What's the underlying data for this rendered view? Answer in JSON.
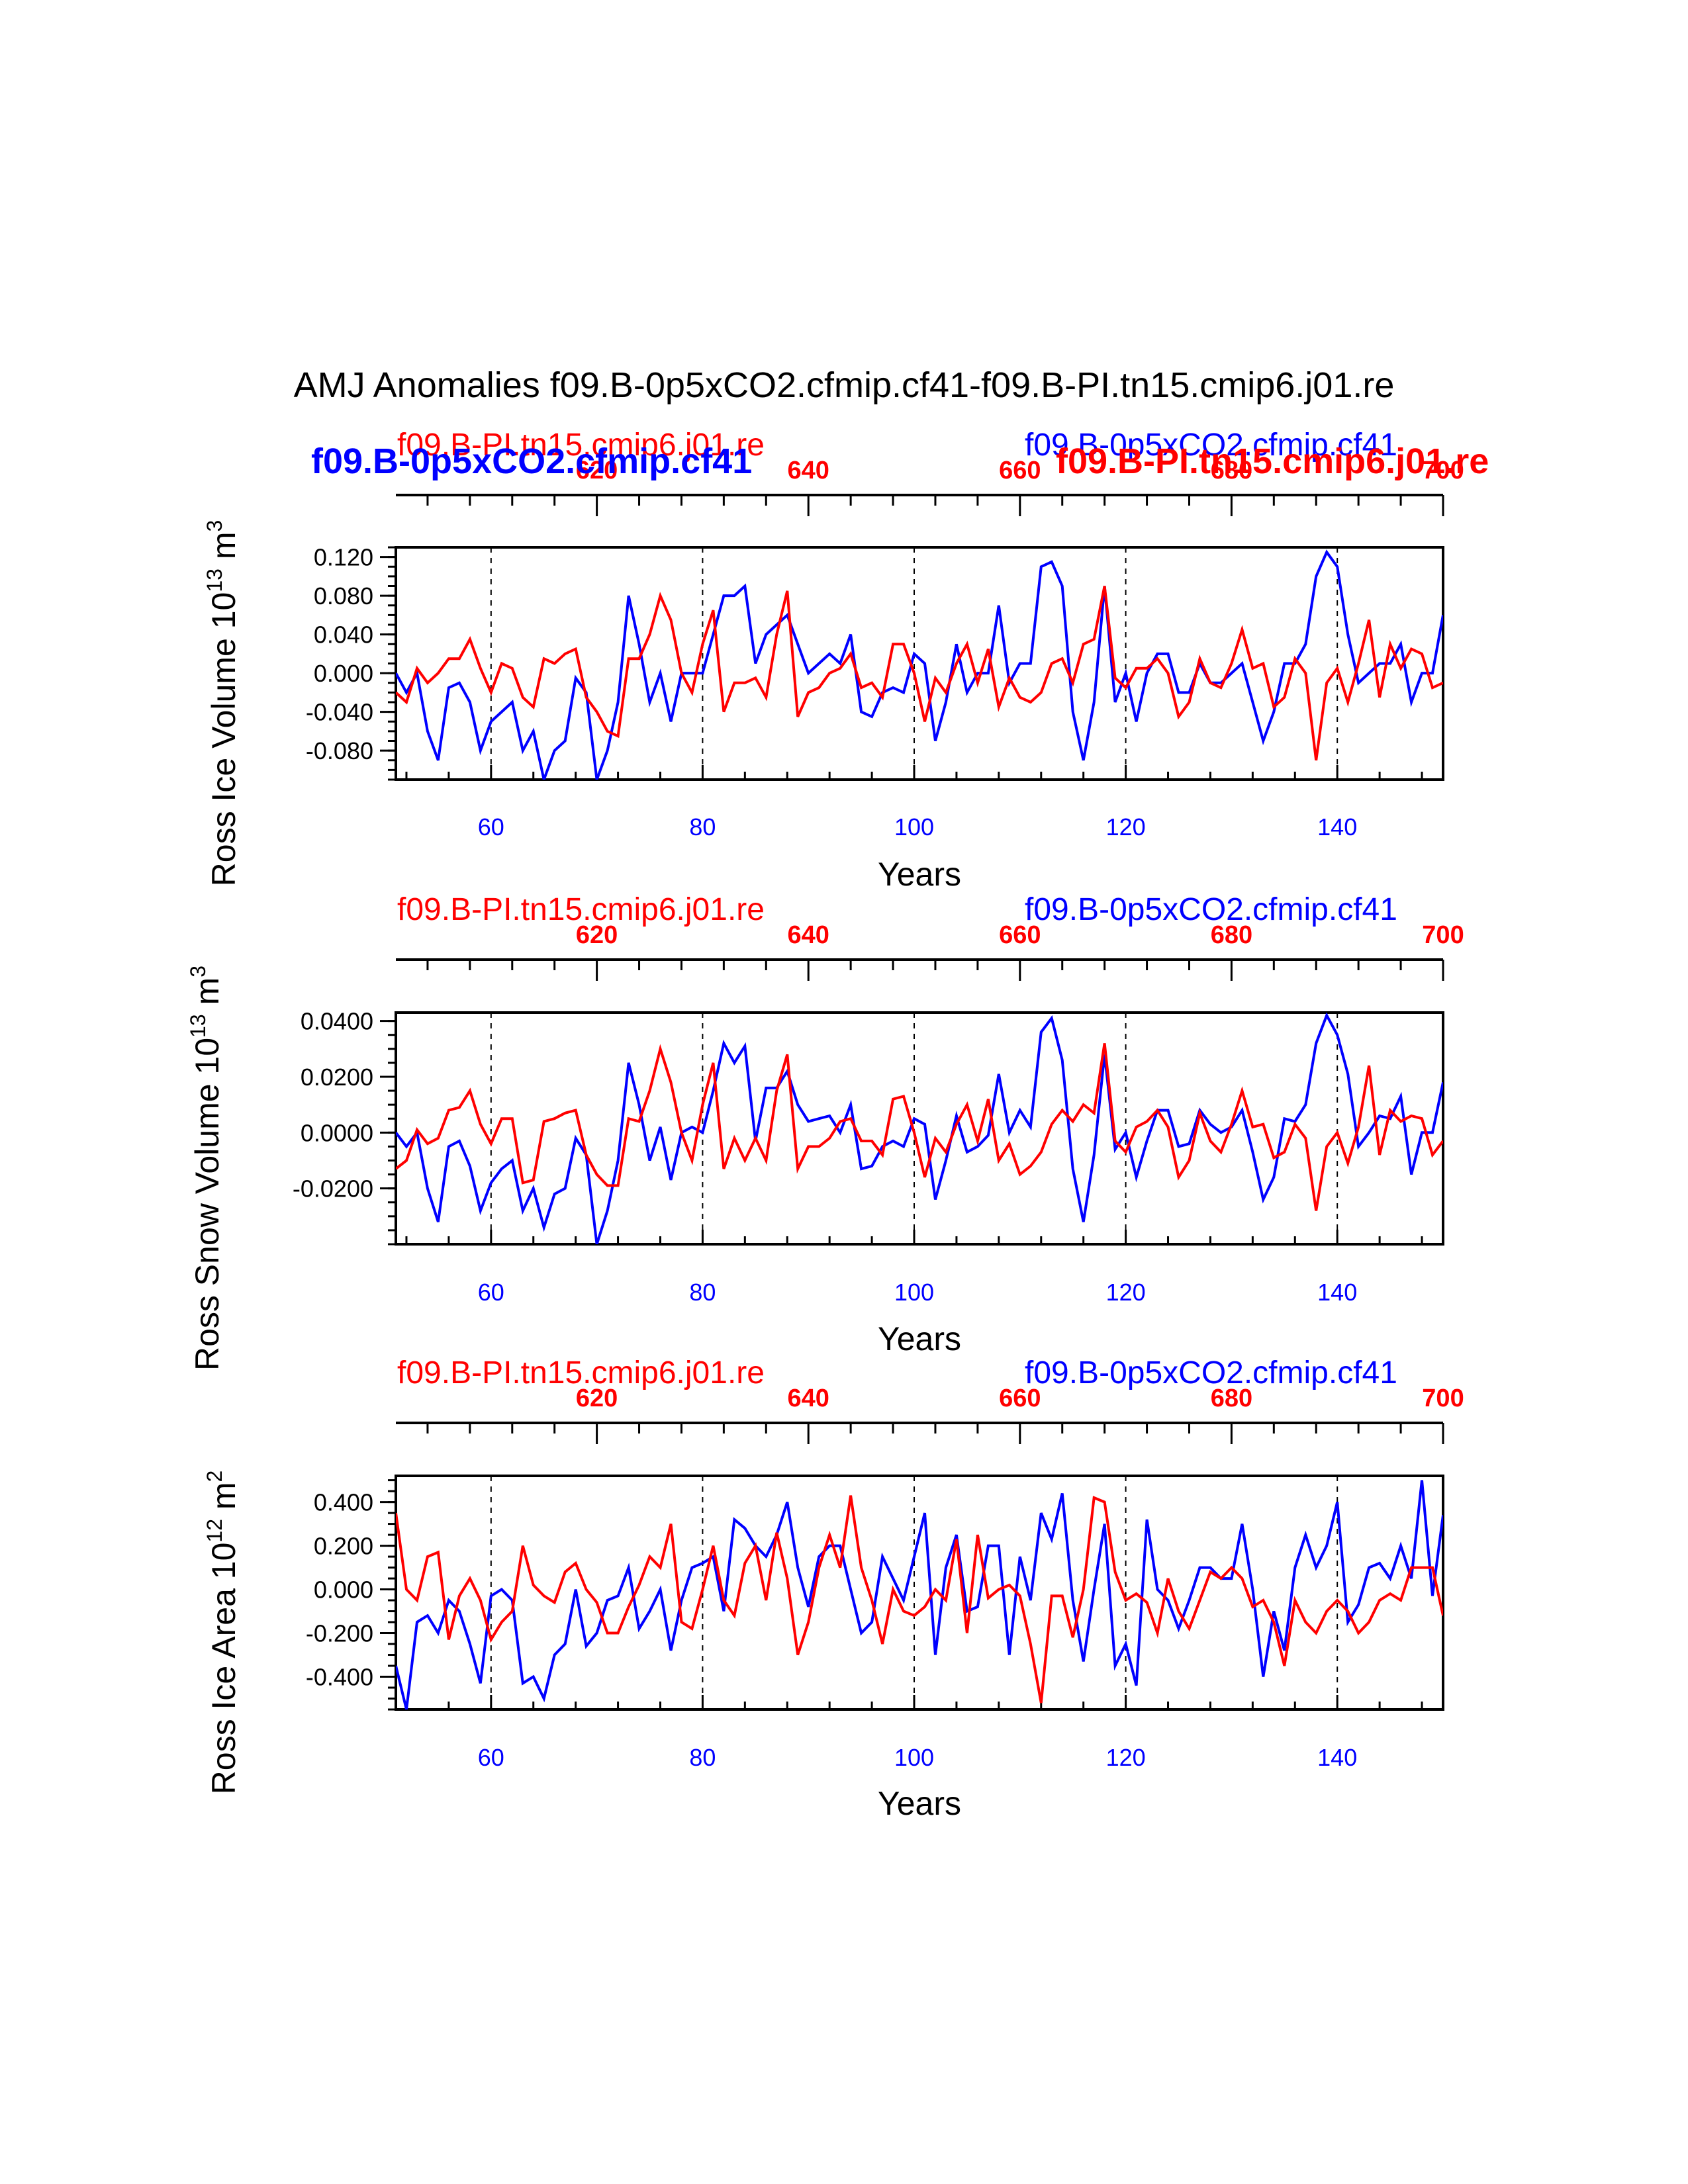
{
  "title": "AMJ Anomalies f09.B-0p5xCO2.cfmip.cf41-f09.B-PI.tn15.cmip6.j01.re",
  "colors": {
    "red": "#ff0000",
    "blue": "#0000ff"
  },
  "overlay_labels": {
    "blue": "f09.B-0p5xCO2.cfmip.cf41",
    "red": "f09.B-PI.tn15.cmip6.j01.re"
  },
  "chart_data": [
    {
      "type": "line",
      "name": "panel-ice-volume",
      "ylabel": "Ross Ice Volume 10",
      "ylabel_exp": "13",
      "ylabel_unit": "m",
      "ylabel_unit_exp": "3",
      "xlabel": "Years",
      "series_label_red": "f09.B-PI.tn15.cmip6.j01.re",
      "series_label_blue": "f09.B-0p5xCO2.cfmip.cf41",
      "ylim": [
        -0.11,
        0.13
      ],
      "yticks": [
        "0.120",
        "0.080",
        "0.040",
        "0.000",
        "-0.040",
        "-0.080"
      ],
      "ytick_values": [
        0.12,
        0.08,
        0.04,
        0.0,
        -0.04,
        -0.08
      ],
      "xlim_bottom": [
        51,
        150
      ],
      "xlim_top": [
        601,
        700
      ],
      "xticks_bottom": [
        "60",
        "80",
        "100",
        "120",
        "140"
      ],
      "xticks_top": [
        "620",
        "640",
        "660",
        "680",
        "700"
      ],
      "series": [
        {
          "name": "f09.B-0p5xCO2.cfmip.cf41",
          "color": "blue",
          "x0": 51,
          "values": [
            0.0,
            -0.02,
            0.0,
            -0.06,
            -0.09,
            -0.015,
            -0.01,
            -0.03,
            -0.08,
            -0.05,
            -0.04,
            -0.03,
            -0.08,
            -0.06,
            -0.11,
            -0.08,
            -0.07,
            -0.005,
            -0.02,
            -0.11,
            -0.08,
            -0.03,
            0.08,
            0.03,
            -0.03,
            0.0,
            -0.05,
            0.0,
            0.0,
            0.0,
            0.04,
            0.08,
            0.08,
            0.09,
            0.01,
            0.04,
            0.05,
            0.06,
            0.03,
            0.0,
            0.01,
            0.02,
            0.01,
            0.04,
            -0.04,
            -0.045,
            -0.02,
            -0.015,
            -0.02,
            0.02,
            0.01,
            -0.07,
            -0.03,
            0.03,
            -0.02,
            0.0,
            0.0,
            0.07,
            -0.01,
            0.01,
            0.01,
            0.11,
            0.115,
            0.09,
            -0.04,
            -0.09,
            -0.03,
            0.09,
            -0.03,
            0.0,
            -0.05,
            0.0,
            0.02,
            0.02,
            -0.02,
            -0.02,
            0.01,
            -0.01,
            -0.01,
            0.0,
            0.01,
            -0.03,
            -0.07,
            -0.04,
            0.01,
            0.01,
            0.03,
            0.1,
            0.125,
            0.11,
            0.04,
            -0.01,
            0.0,
            0.01,
            0.01,
            0.03,
            -0.03,
            0.0,
            0.0,
            0.06
          ]
        },
        {
          "name": "f09.B-PI.tn15.cmip6.j01.re",
          "color": "red",
          "x0": 51,
          "values": [
            -0.02,
            -0.03,
            0.005,
            -0.01,
            0.0,
            0.015,
            0.015,
            0.035,
            0.005,
            -0.02,
            0.01,
            0.005,
            -0.025,
            -0.035,
            0.015,
            0.01,
            0.02,
            0.025,
            -0.025,
            -0.04,
            -0.06,
            -0.065,
            0.015,
            0.015,
            0.04,
            0.08,
            0.055,
            0.0,
            -0.02,
            0.03,
            0.065,
            -0.04,
            -0.01,
            -0.01,
            -0.005,
            -0.025,
            0.04,
            0.085,
            -0.045,
            -0.02,
            -0.015,
            0.0,
            0.005,
            0.02,
            -0.015,
            -0.01,
            -0.025,
            0.03,
            0.03,
            0.0,
            -0.05,
            -0.005,
            -0.02,
            0.01,
            0.03,
            -0.01,
            0.025,
            -0.035,
            -0.005,
            -0.025,
            -0.03,
            -0.02,
            0.01,
            0.015,
            -0.01,
            0.03,
            0.035,
            0.09,
            -0.005,
            -0.015,
            0.005,
            0.005,
            0.015,
            0.0,
            -0.045,
            -0.03,
            0.015,
            -0.01,
            -0.015,
            0.01,
            0.045,
            0.005,
            0.01,
            -0.035,
            -0.025,
            0.015,
            0.0,
            -0.09,
            -0.01,
            0.005,
            -0.03,
            0.01,
            0.055,
            -0.025,
            0.03,
            0.005,
            0.025,
            0.02,
            -0.015,
            -0.01
          ]
        }
      ]
    },
    {
      "type": "line",
      "name": "panel-snow-volume",
      "ylabel": "Ross Snow Volume 10",
      "ylabel_exp": "13",
      "ylabel_unit": "m",
      "ylabel_unit_exp": "3",
      "xlabel": "Years",
      "series_label_red": "f09.B-PI.tn15.cmip6.j01.re",
      "series_label_blue": "f09.B-0p5xCO2.cfmip.cf41",
      "ylim": [
        -0.04,
        0.043
      ],
      "yticks": [
        "0.0400",
        "0.0200",
        "0.0000",
        "-0.0200"
      ],
      "ytick_values": [
        0.04,
        0.02,
        0.0,
        -0.02
      ],
      "xlim_bottom": [
        51,
        150
      ],
      "xlim_top": [
        601,
        700
      ],
      "xticks_bottom": [
        "60",
        "80",
        "100",
        "120",
        "140"
      ],
      "xticks_top": [
        "620",
        "640",
        "660",
        "680",
        "700"
      ],
      "series": [
        {
          "name": "f09.B-0p5xCO2.cfmip.cf41",
          "color": "blue",
          "x0": 51,
          "values": [
            0.0,
            -0.005,
            0.0,
            -0.02,
            -0.032,
            -0.005,
            -0.003,
            -0.012,
            -0.028,
            -0.018,
            -0.013,
            -0.01,
            -0.028,
            -0.02,
            -0.034,
            -0.022,
            -0.02,
            -0.002,
            -0.008,
            -0.04,
            -0.028,
            -0.01,
            0.025,
            0.01,
            -0.01,
            0.002,
            -0.017,
            0.0,
            0.002,
            0.0,
            0.015,
            0.032,
            0.025,
            0.031,
            -0.003,
            0.016,
            0.016,
            0.022,
            0.01,
            0.004,
            0.005,
            0.006,
            0.0,
            0.01,
            -0.013,
            -0.012,
            -0.005,
            -0.003,
            -0.005,
            0.005,
            0.003,
            -0.024,
            -0.01,
            0.006,
            -0.007,
            -0.005,
            -0.001,
            0.021,
            0.0,
            0.008,
            0.002,
            0.036,
            0.041,
            0.026,
            -0.013,
            -0.032,
            -0.008,
            0.028,
            -0.006,
            0.0,
            -0.016,
            -0.003,
            0.008,
            0.008,
            -0.005,
            -0.004,
            0.008,
            0.003,
            0.0,
            0.002,
            0.008,
            -0.007,
            -0.024,
            -0.016,
            0.005,
            0.004,
            0.01,
            0.032,
            0.042,
            0.035,
            0.021,
            -0.005,
            0.0,
            0.006,
            0.005,
            0.013,
            -0.015,
            0.0,
            0.0,
            0.018
          ]
        },
        {
          "name": "f09.B-PI.tn15.cmip6.j01.re",
          "color": "red",
          "x0": 51,
          "values": [
            -0.013,
            -0.01,
            0.001,
            -0.004,
            -0.002,
            0.008,
            0.009,
            0.015,
            0.003,
            -0.004,
            0.005,
            0.005,
            -0.018,
            -0.017,
            0.004,
            0.005,
            0.007,
            0.008,
            -0.008,
            -0.015,
            -0.019,
            -0.019,
            0.005,
            0.004,
            0.015,
            0.03,
            0.018,
            0.0,
            -0.01,
            0.01,
            0.025,
            -0.013,
            -0.002,
            -0.01,
            -0.002,
            -0.01,
            0.015,
            0.028,
            -0.013,
            -0.005,
            -0.005,
            -0.002,
            0.004,
            0.005,
            -0.003,
            -0.003,
            -0.008,
            0.012,
            0.013,
            0.0,
            -0.016,
            -0.002,
            -0.007,
            0.003,
            0.01,
            -0.003,
            0.012,
            -0.01,
            -0.004,
            -0.015,
            -0.012,
            -0.007,
            0.003,
            0.008,
            0.004,
            0.01,
            0.007,
            0.032,
            -0.003,
            -0.007,
            0.002,
            0.004,
            0.008,
            0.002,
            -0.016,
            -0.01,
            0.007,
            -0.003,
            -0.007,
            0.003,
            0.015,
            0.002,
            0.003,
            -0.009,
            -0.007,
            0.003,
            -0.002,
            -0.028,
            -0.005,
            0.0,
            -0.011,
            0.002,
            0.024,
            -0.008,
            0.008,
            0.004,
            0.006,
            0.005,
            -0.008,
            -0.003
          ]
        }
      ]
    },
    {
      "type": "line",
      "name": "panel-ice-area",
      "ylabel": "Ross Ice Area 10",
      "ylabel_exp": "12",
      "ylabel_unit": "m",
      "ylabel_unit_exp": "2",
      "xlabel": "Years",
      "series_label_red": "f09.B-PI.tn15.cmip6.j01.re",
      "series_label_blue": "f09.B-0p5xCO2.cfmip.cf41",
      "ylim": [
        -0.55,
        0.52
      ],
      "yticks": [
        "0.400",
        "0.200",
        "0.000",
        "-0.200",
        "-0.400"
      ],
      "ytick_values": [
        0.4,
        0.2,
        0.0,
        -0.2,
        -0.4
      ],
      "xlim_bottom": [
        51,
        150
      ],
      "xlim_top": [
        601,
        700
      ],
      "xticks_bottom": [
        "60",
        "80",
        "100",
        "120",
        "140"
      ],
      "xticks_top": [
        "620",
        "640",
        "660",
        "680",
        "700"
      ],
      "series": [
        {
          "name": "f09.B-0p5xCO2.cfmip.cf41",
          "color": "blue",
          "x0": 51,
          "values": [
            -0.35,
            -0.55,
            -0.15,
            -0.12,
            -0.2,
            -0.05,
            -0.1,
            -0.25,
            -0.43,
            -0.03,
            0.0,
            -0.05,
            -0.43,
            -0.4,
            -0.5,
            -0.3,
            -0.25,
            0.0,
            -0.26,
            -0.2,
            -0.05,
            -0.03,
            0.1,
            -0.18,
            -0.1,
            0.0,
            -0.28,
            -0.05,
            0.1,
            0.12,
            0.15,
            -0.1,
            0.32,
            0.28,
            0.2,
            0.15,
            0.25,
            0.4,
            0.1,
            -0.08,
            0.15,
            0.2,
            0.2,
            0.0,
            -0.2,
            -0.15,
            0.15,
            0.05,
            -0.05,
            0.15,
            0.35,
            -0.3,
            0.1,
            0.25,
            -0.1,
            -0.08,
            0.2,
            0.2,
            -0.3,
            0.15,
            -0.05,
            0.35,
            0.23,
            0.44,
            -0.05,
            -0.33,
            0.0,
            0.3,
            -0.35,
            -0.25,
            -0.44,
            0.32,
            0.0,
            -0.05,
            -0.18,
            -0.05,
            0.1,
            0.1,
            0.05,
            0.05,
            0.3,
            0.0,
            -0.4,
            -0.1,
            -0.28,
            0.1,
            0.25,
            0.1,
            0.2,
            0.4,
            -0.15,
            -0.07,
            0.1,
            0.12,
            0.05,
            0.2,
            0.05,
            0.5,
            -0.03,
            0.34
          ]
        },
        {
          "name": "f09.B-PI.tn15.cmip6.j01.re",
          "color": "red",
          "x0": 51,
          "values": [
            0.35,
            0.0,
            -0.05,
            0.15,
            0.17,
            -0.23,
            -0.03,
            0.05,
            -0.05,
            -0.23,
            -0.15,
            -0.1,
            0.2,
            0.02,
            -0.03,
            -0.06,
            0.08,
            0.12,
            0.0,
            -0.06,
            -0.2,
            -0.2,
            -0.08,
            0.02,
            0.15,
            0.1,
            0.3,
            -0.15,
            -0.18,
            0.0,
            0.2,
            -0.05,
            -0.12,
            0.12,
            0.2,
            -0.05,
            0.26,
            0.05,
            -0.3,
            -0.15,
            0.1,
            0.25,
            0.1,
            0.43,
            0.1,
            -0.05,
            -0.25,
            0.0,
            -0.1,
            -0.12,
            -0.08,
            0.0,
            -0.05,
            0.23,
            -0.2,
            0.25,
            -0.04,
            0.0,
            0.02,
            -0.03,
            -0.25,
            -0.52,
            -0.03,
            -0.03,
            -0.22,
            0.0,
            0.42,
            0.4,
            0.08,
            -0.05,
            -0.02,
            -0.06,
            -0.2,
            0.05,
            -0.1,
            -0.18,
            -0.05,
            0.08,
            0.05,
            0.1,
            0.05,
            -0.08,
            -0.05,
            -0.15,
            -0.35,
            -0.05,
            -0.15,
            -0.2,
            -0.1,
            -0.05,
            -0.1,
            -0.2,
            -0.15,
            -0.05,
            -0.02,
            -0.05,
            0.1,
            0.1,
            0.1,
            -0.12
          ]
        }
      ]
    }
  ]
}
